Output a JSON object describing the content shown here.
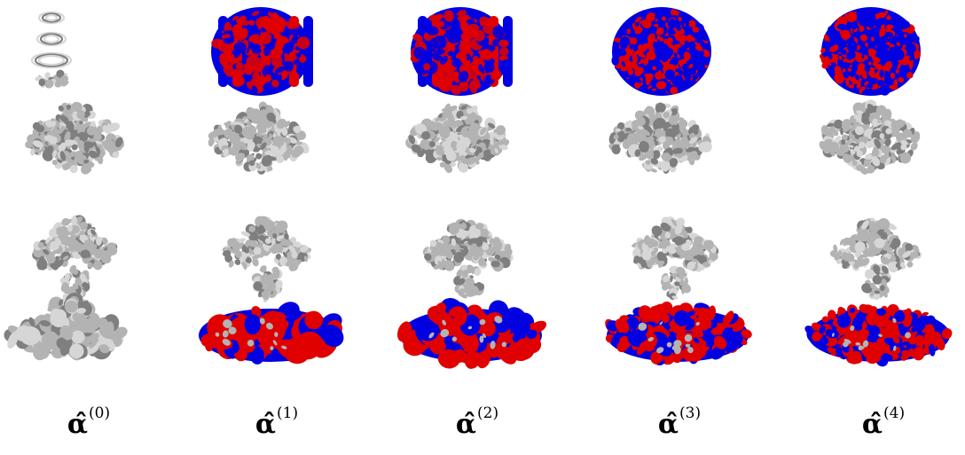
{
  "figure": {
    "colors": {
      "gray_surface": "#b3b3b3",
      "gray_light": "#d6d6d6",
      "gray_dark": "#7f7f7f",
      "red": "#e00000",
      "blue": "#0000e0"
    },
    "columns": [
      {
        "symbol": "α̂",
        "superscript": "(0)",
        "colored": false
      },
      {
        "symbol": "α̂",
        "superscript": "(1)",
        "colored": true
      },
      {
        "symbol": "α̂",
        "superscript": "(2)",
        "colored": true
      },
      {
        "symbol": "α̂",
        "superscript": "(3)",
        "colored": true
      },
      {
        "symbol": "α̂",
        "superscript": "(4)",
        "colored": true
      }
    ]
  }
}
